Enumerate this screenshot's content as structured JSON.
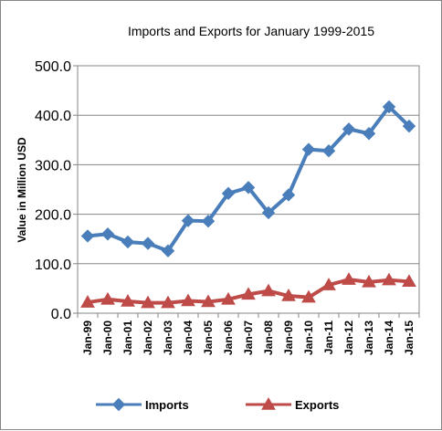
{
  "chart_data": {
    "type": "line",
    "title": "Imports and Exports for January 1999-2015",
    "xlabel": "",
    "ylabel": "Value in  Million  USD",
    "categories": [
      "Jan-99",
      "Jan-00",
      "Jan-01",
      "Jan-02",
      "Jan-03",
      "Jan-04",
      "Jan-05",
      "Jan-06",
      "Jan-07",
      "Jan-08",
      "Jan-09",
      "Jan-10",
      "Jan-11",
      "Jan-12",
      "Jan-13",
      "Jan-14",
      "Jan-15"
    ],
    "ylim": [
      0,
      500
    ],
    "yticks": [
      0,
      100,
      200,
      300,
      400,
      500
    ],
    "ytick_labels": [
      "0.0",
      "100.0",
      "200.0",
      "300.0",
      "400.0",
      "500.0"
    ],
    "grid": "horizontal",
    "legend_position": "bottom",
    "series": [
      {
        "name": "Imports",
        "color": "#4a7ebb",
        "marker": "diamond",
        "values": [
          156,
          160,
          144,
          141,
          126,
          187,
          186,
          242,
          254,
          203,
          239,
          331,
          328,
          372,
          363,
          417,
          378
        ]
      },
      {
        "name": "Exports",
        "color": "#be4b48",
        "marker": "triangle",
        "values": [
          22,
          28,
          24,
          21,
          21,
          25,
          23,
          28,
          38,
          45,
          35,
          32,
          57,
          68,
          63,
          67,
          64
        ]
      }
    ]
  }
}
